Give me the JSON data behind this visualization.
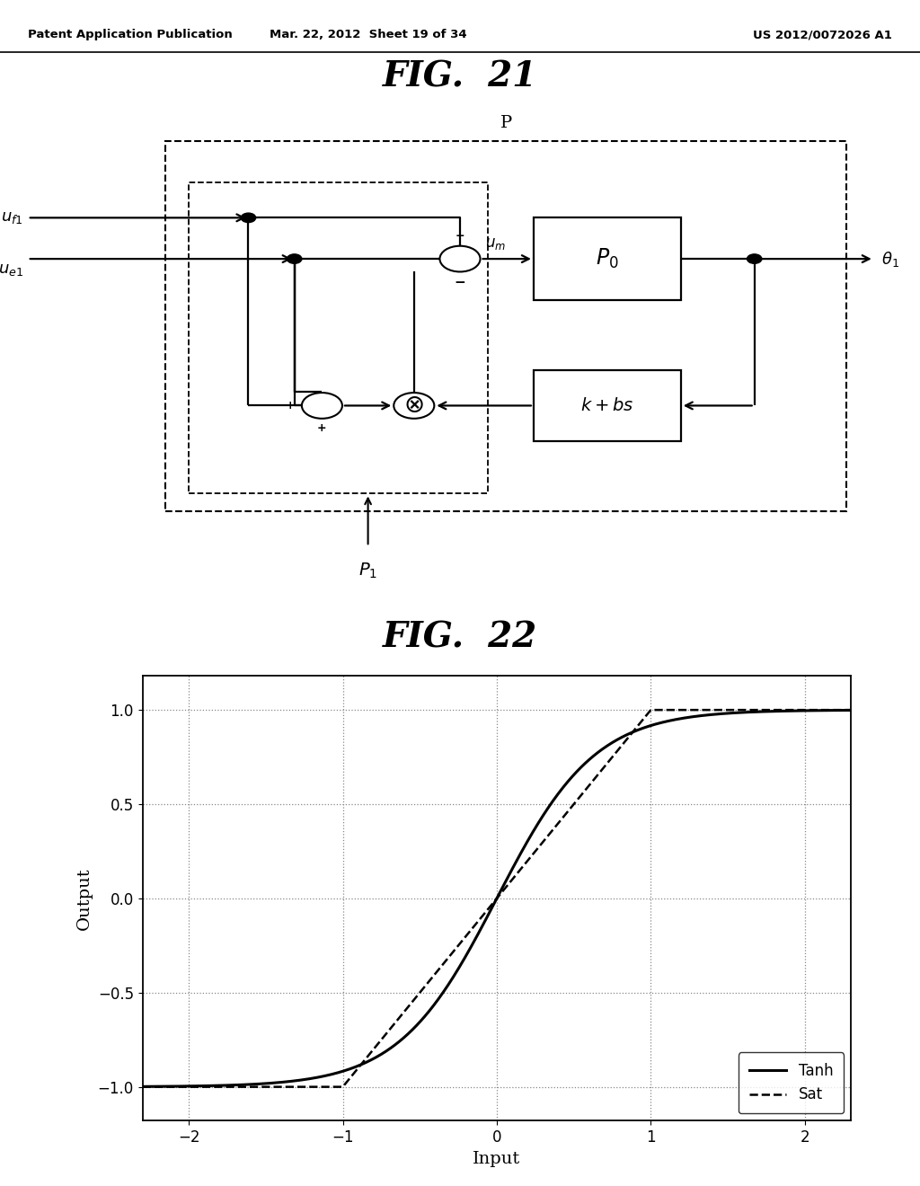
{
  "header_left": "Patent Application Publication",
  "header_mid": "Mar. 22, 2012  Sheet 19 of 34",
  "header_right": "US 2012/0072026 A1",
  "fig21_title": "FIG.  21",
  "fig22_title": "FIG.  22",
  "fig22_xlabel": "Input",
  "fig22_ylabel": "Output",
  "fig22_xlim": [
    -2.3,
    2.3
  ],
  "fig22_ylim": [
    -1.18,
    1.18
  ],
  "fig22_xticks": [
    -2,
    -1,
    0,
    1,
    2
  ],
  "fig22_yticks": [
    -1,
    -0.5,
    0,
    0.5,
    1
  ],
  "legend_tanh": "Tanh",
  "legend_sat": "Sat",
  "background_color": "#ffffff",
  "line_color": "#000000"
}
